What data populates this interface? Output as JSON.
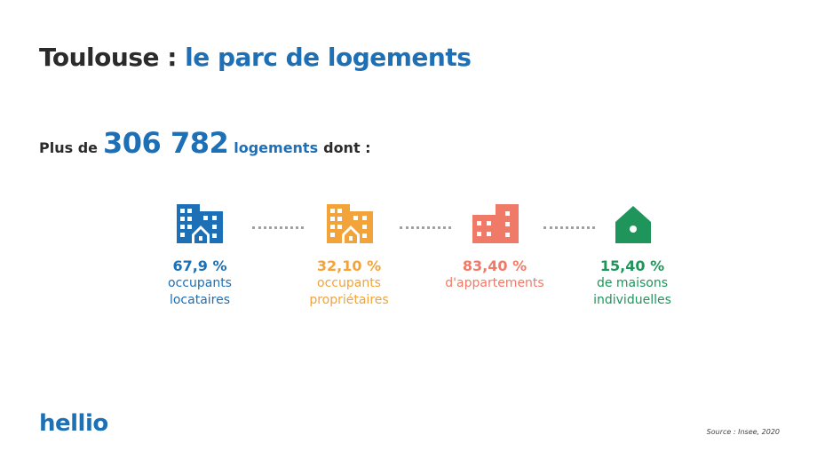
{
  "title": {
    "part1": "Toulouse : ",
    "part2": "le parc de logements"
  },
  "subtitle": {
    "prefix": "Plus de",
    "count": "306 782",
    "unit": "logements",
    "suffix": "dont :"
  },
  "stats": [
    {
      "value": "67,9 %",
      "label_line1": "occupants",
      "label_line2": "locataires",
      "color": "#1d6fb6",
      "icon": "apartment-buildings-icon"
    },
    {
      "value": "32,10 %",
      "label_line1": "occupants",
      "label_line2": "propriétaires",
      "color": "#f2a33a",
      "icon": "apartment-buildings-icon"
    },
    {
      "value": "83,40 %",
      "label_line1": "d'appartements",
      "label_line2": "",
      "color": "#f07a68",
      "icon": "apartment-building-icon"
    },
    {
      "value": "15,40 %",
      "label_line1": "de maisons",
      "label_line2": "individuelles",
      "color": "#20955b",
      "icon": "house-icon"
    }
  ],
  "logo": "hellio",
  "source": "Source : Insee, 2020"
}
